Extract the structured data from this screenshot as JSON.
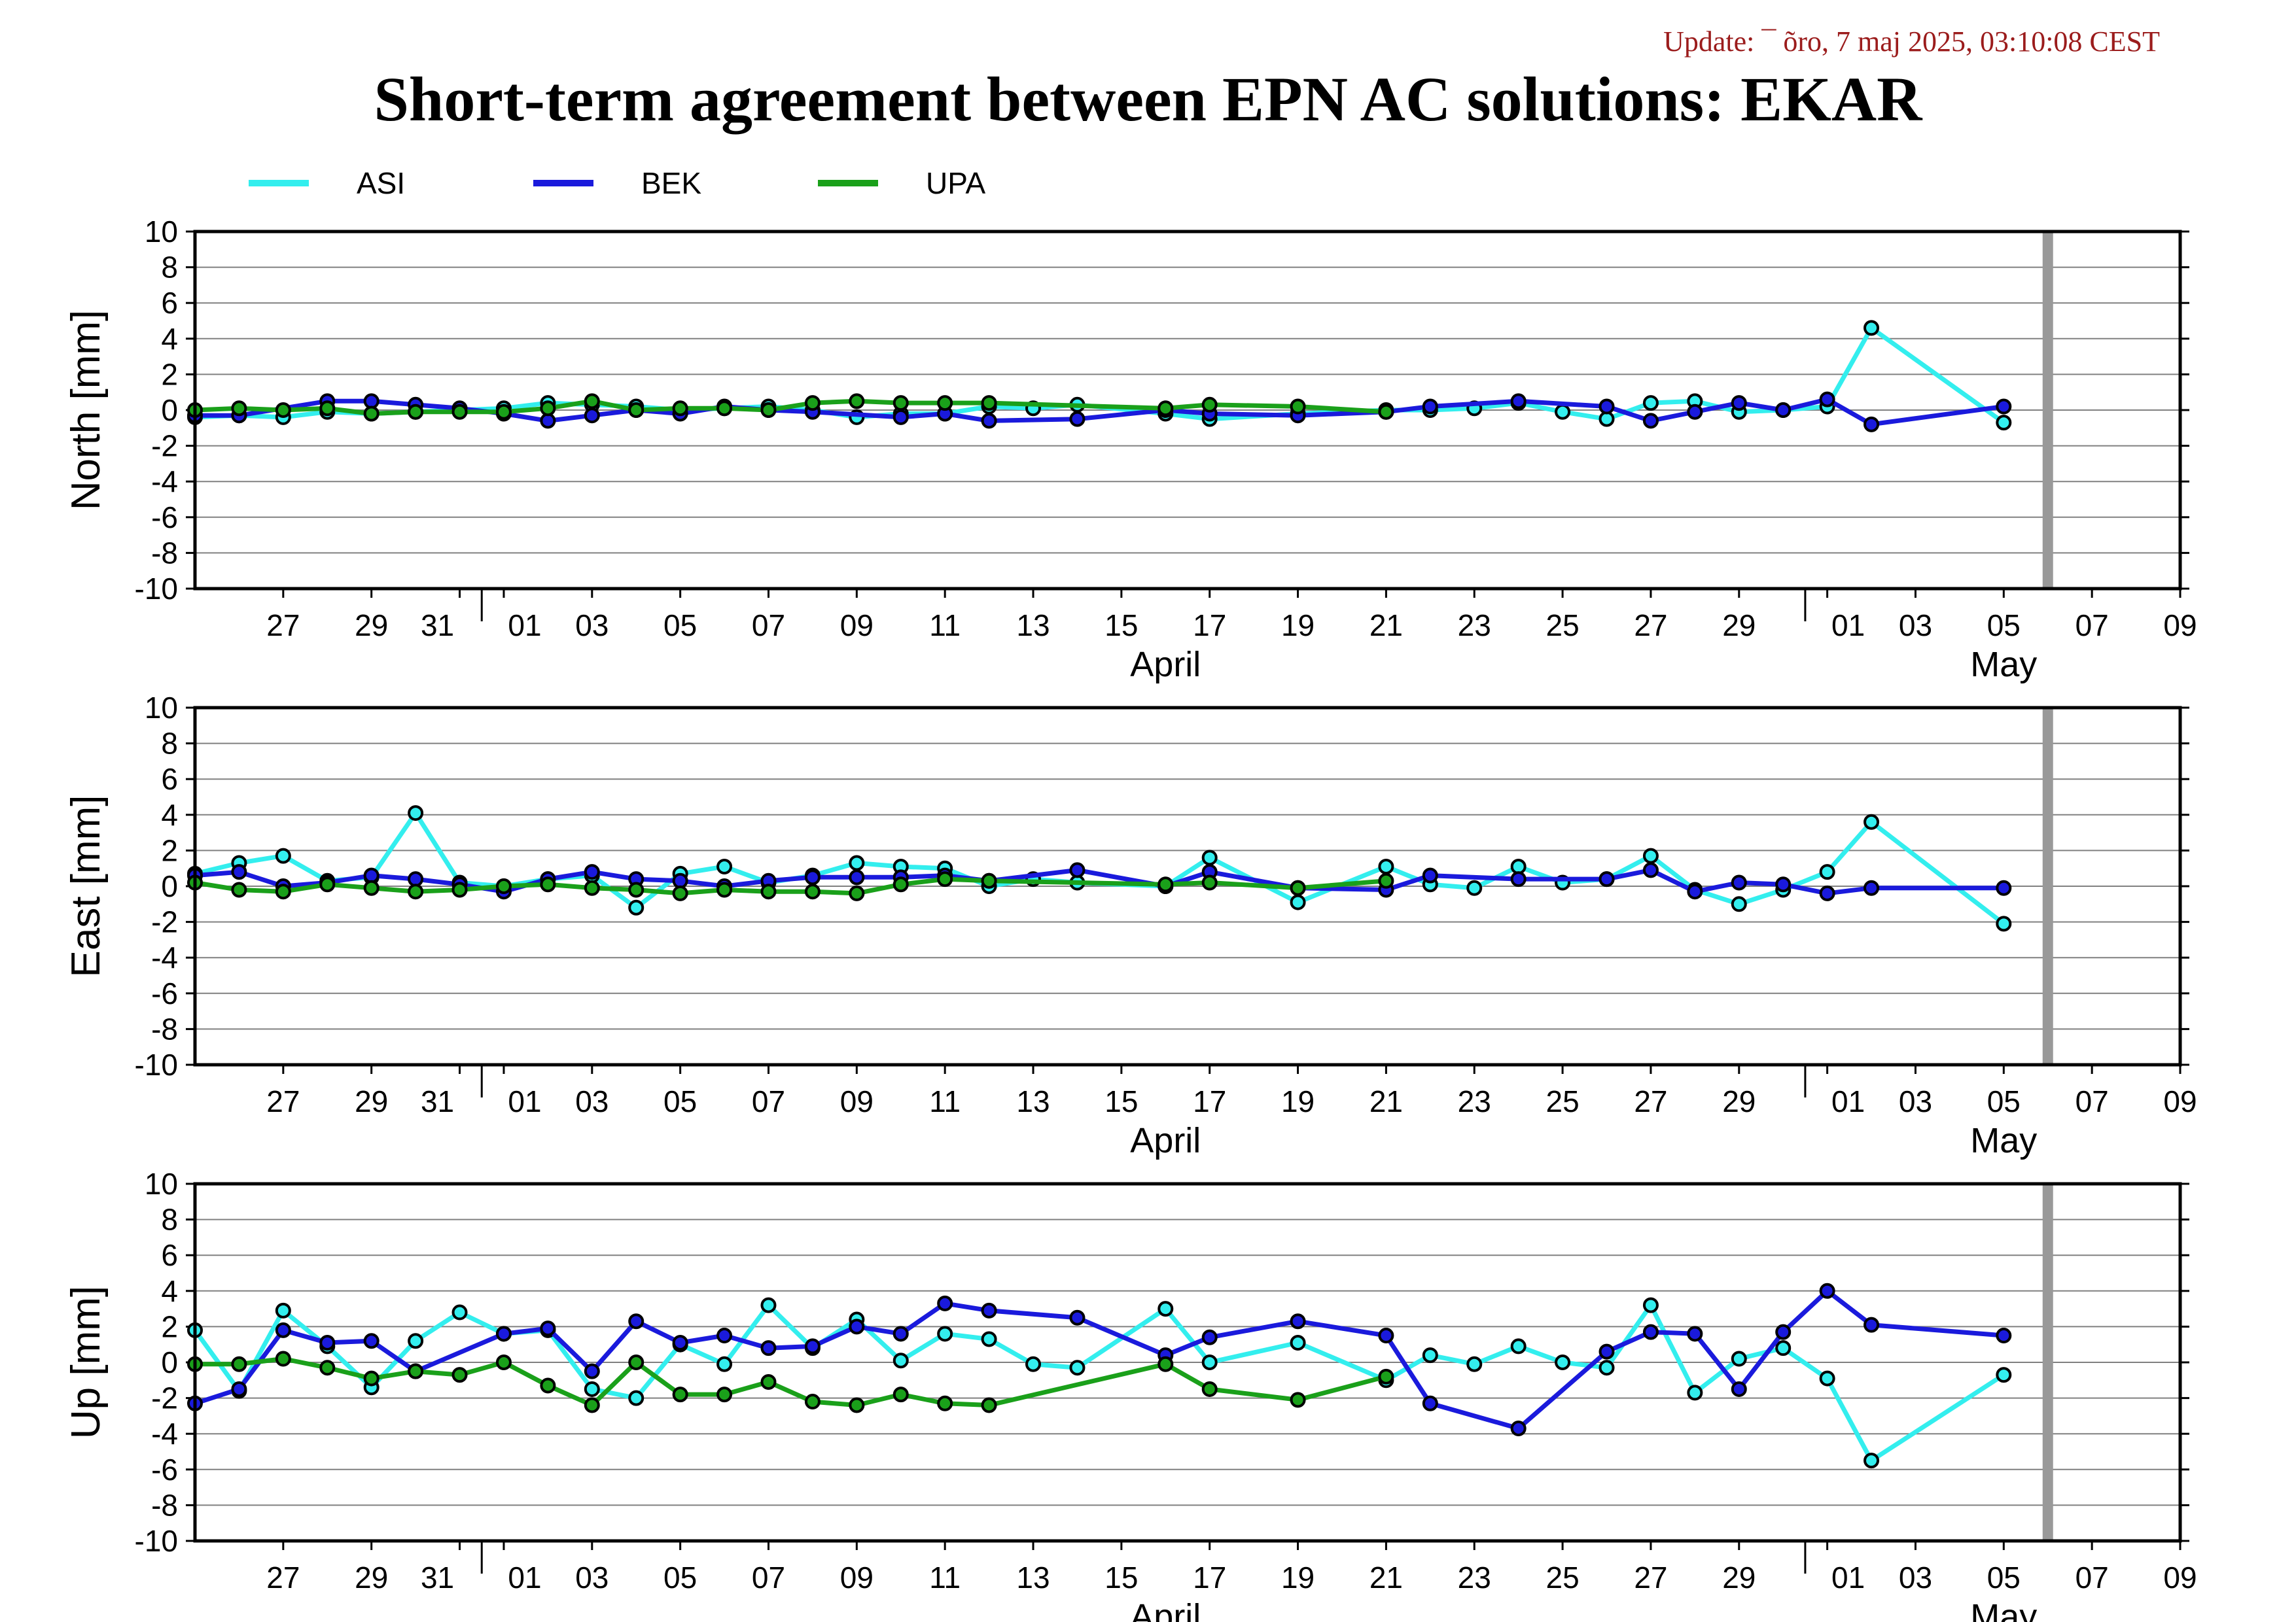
{
  "header": {
    "update_text": "Update: ¯ õro, 7 maj 2025, 03:10:08 CEST",
    "title": "Short-term agreement between EPN AC solutions: EKAR"
  },
  "colors": {
    "ASI": "#33eeee",
    "BEK": "#1a1adc",
    "UPA": "#1aa01a",
    "current_day_bar": "#999999",
    "grid": "#808080"
  },
  "chart_data": [
    {
      "type": "line",
      "ylabel": "North [mm]",
      "ylim": [
        -10,
        10
      ],
      "yticks": [
        10,
        8,
        6,
        4,
        2,
        0,
        -2,
        -4,
        -6,
        -8,
        -10
      ],
      "xlim": [
        "2025-03-25",
        "2025-05-09"
      ],
      "x_tick_labels": [
        "27",
        "29",
        "31",
        "01",
        "03",
        "05",
        "07",
        "09",
        "11",
        "13",
        "15",
        "17",
        "19",
        "21",
        "23",
        "25",
        "27",
        "29",
        "01",
        "03",
        "05",
        "07",
        "09"
      ],
      "month_labels": [
        "April",
        "May"
      ],
      "current_day": "2025-05-06",
      "grid": "horizontal",
      "legend": "top",
      "series": [
        {
          "name": "ASI",
          "x": [
            "2025-03-25",
            "2025-03-26",
            "2025-03-27",
            "2025-03-28",
            "2025-03-29",
            "2025-03-30",
            "2025-03-31",
            "2025-04-01",
            "2025-04-02",
            "2025-04-03",
            "2025-04-04",
            "2025-04-05",
            "2025-04-06",
            "2025-04-07",
            "2025-04-08",
            "2025-04-09",
            "2025-04-10",
            "2025-04-11",
            "2025-04-12",
            "2025-04-13",
            "2025-04-14",
            "2025-04-16",
            "2025-04-17",
            "2025-04-19",
            "2025-04-21",
            "2025-04-22",
            "2025-04-23",
            "2025-04-24",
            "2025-04-25",
            "2025-04-26",
            "2025-04-27",
            "2025-04-28",
            "2025-04-29",
            "2025-04-30",
            "2025-05-01",
            "2025-05-02",
            "2025-05-05"
          ],
          "y": [
            -0.4,
            -0.3,
            -0.4,
            -0.1,
            -0.2,
            -0.1,
            0.0,
            0.1,
            0.4,
            0.3,
            0.2,
            0.0,
            0.1,
            0.2,
            0.0,
            -0.4,
            -0.2,
            -0.2,
            0.2,
            0.1,
            0.3,
            -0.2,
            -0.5,
            -0.2,
            0.0,
            0.0,
            0.1,
            0.4,
            -0.1,
            -0.5,
            0.4,
            0.5,
            -0.1,
            0.0,
            0.2,
            4.6,
            -0.7
          ]
        },
        {
          "name": "BEK",
          "x": [
            "2025-03-25",
            "2025-03-26",
            "2025-03-28",
            "2025-03-29",
            "2025-03-30",
            "2025-03-31",
            "2025-04-01",
            "2025-04-02",
            "2025-04-03",
            "2025-04-04",
            "2025-04-05",
            "2025-04-06",
            "2025-04-07",
            "2025-04-08",
            "2025-04-10",
            "2025-04-11",
            "2025-04-12",
            "2025-04-14",
            "2025-04-16",
            "2025-04-17",
            "2025-04-19",
            "2025-04-21",
            "2025-04-22",
            "2025-04-24",
            "2025-04-26",
            "2025-04-27",
            "2025-04-28",
            "2025-04-29",
            "2025-04-30",
            "2025-05-01",
            "2025-05-02",
            "2025-05-05"
          ],
          "y": [
            -0.3,
            -0.3,
            0.5,
            0.5,
            0.3,
            0.1,
            -0.2,
            -0.6,
            -0.3,
            0.0,
            -0.2,
            0.2,
            0.0,
            -0.1,
            -0.4,
            -0.2,
            -0.6,
            -0.5,
            0.0,
            -0.2,
            -0.3,
            -0.1,
            0.2,
            0.5,
            0.2,
            -0.6,
            -0.1,
            0.4,
            0.0,
            0.6,
            -0.8,
            0.2
          ]
        },
        {
          "name": "UPA",
          "x": [
            "2025-03-25",
            "2025-03-26",
            "2025-03-27",
            "2025-03-28",
            "2025-03-29",
            "2025-03-30",
            "2025-03-31",
            "2025-04-01",
            "2025-04-02",
            "2025-04-03",
            "2025-04-04",
            "2025-04-05",
            "2025-04-06",
            "2025-04-07",
            "2025-04-08",
            "2025-04-09",
            "2025-04-10",
            "2025-04-11",
            "2025-04-12",
            "2025-04-16",
            "2025-04-17",
            "2025-04-19",
            "2025-04-21"
          ],
          "y": [
            0.0,
            0.1,
            0.0,
            0.1,
            -0.2,
            -0.1,
            -0.1,
            -0.1,
            0.1,
            0.5,
            0.0,
            0.1,
            0.1,
            0.0,
            0.4,
            0.5,
            0.4,
            0.4,
            0.4,
            0.1,
            0.3,
            0.2,
            -0.1
          ]
        }
      ]
    },
    {
      "type": "line",
      "ylabel": "East [mm]",
      "ylim": [
        -10,
        10
      ],
      "yticks": [
        10,
        8,
        6,
        4,
        2,
        0,
        -2,
        -4,
        -6,
        -8,
        -10
      ],
      "xlim": [
        "2025-03-25",
        "2025-05-09"
      ],
      "x_tick_labels": [
        "27",
        "29",
        "31",
        "01",
        "03",
        "05",
        "07",
        "09",
        "11",
        "13",
        "15",
        "17",
        "19",
        "21",
        "23",
        "25",
        "27",
        "29",
        "01",
        "03",
        "05",
        "07",
        "09"
      ],
      "month_labels": [
        "April",
        "May"
      ],
      "current_day": "2025-05-06",
      "grid": "horizontal",
      "series": [
        {
          "name": "ASI",
          "x": [
            "2025-03-25",
            "2025-03-26",
            "2025-03-27",
            "2025-03-28",
            "2025-03-29",
            "2025-03-30",
            "2025-03-31",
            "2025-04-01",
            "2025-04-02",
            "2025-04-03",
            "2025-04-04",
            "2025-04-05",
            "2025-04-06",
            "2025-04-07",
            "2025-04-08",
            "2025-04-09",
            "2025-04-10",
            "2025-04-11",
            "2025-04-12",
            "2025-04-13",
            "2025-04-14",
            "2025-04-16",
            "2025-04-17",
            "2025-04-19",
            "2025-04-21",
            "2025-04-22",
            "2025-04-23",
            "2025-04-24",
            "2025-04-25",
            "2025-04-26",
            "2025-04-27",
            "2025-04-28",
            "2025-04-29",
            "2025-04-30",
            "2025-05-01",
            "2025-05-02",
            "2025-05-05"
          ],
          "y": [
            0.7,
            1.3,
            1.7,
            0.3,
            0.5,
            4.1,
            0.2,
            0.0,
            0.4,
            0.6,
            -1.2,
            0.7,
            1.1,
            0.2,
            0.6,
            1.3,
            1.1,
            1.0,
            0.0,
            0.4,
            0.2,
            0.0,
            1.6,
            -0.9,
            1.1,
            0.1,
            -0.1,
            1.1,
            0.2,
            0.4,
            1.7,
            -0.2,
            -1.0,
            -0.2,
            0.8,
            3.6,
            -2.1
          ]
        },
        {
          "name": "BEK",
          "x": [
            "2025-03-25",
            "2025-03-26",
            "2025-03-27",
            "2025-03-28",
            "2025-03-29",
            "2025-03-30",
            "2025-03-31",
            "2025-04-01",
            "2025-04-02",
            "2025-04-03",
            "2025-04-04",
            "2025-04-05",
            "2025-04-06",
            "2025-04-07",
            "2025-04-08",
            "2025-04-09",
            "2025-04-10",
            "2025-04-11",
            "2025-04-12",
            "2025-04-14",
            "2025-04-16",
            "2025-04-17",
            "2025-04-19",
            "2025-04-21",
            "2025-04-22",
            "2025-04-24",
            "2025-04-26",
            "2025-04-27",
            "2025-04-28",
            "2025-04-29",
            "2025-04-30",
            "2025-05-01",
            "2025-05-02",
            "2025-05-05"
          ],
          "y": [
            0.6,
            0.8,
            0.0,
            0.2,
            0.6,
            0.4,
            0.1,
            -0.3,
            0.4,
            0.8,
            0.4,
            0.3,
            0.0,
            0.3,
            0.5,
            0.5,
            0.5,
            0.6,
            0.3,
            0.9,
            0.0,
            0.8,
            -0.1,
            -0.2,
            0.6,
            0.4,
            0.4,
            0.9,
            -0.3,
            0.2,
            0.1,
            -0.4,
            -0.1,
            -0.1
          ]
        },
        {
          "name": "UPA",
          "x": [
            "2025-03-25",
            "2025-03-26",
            "2025-03-27",
            "2025-03-28",
            "2025-03-29",
            "2025-03-30",
            "2025-03-31",
            "2025-04-01",
            "2025-04-02",
            "2025-04-03",
            "2025-04-04",
            "2025-04-05",
            "2025-04-06",
            "2025-04-07",
            "2025-04-08",
            "2025-04-09",
            "2025-04-10",
            "2025-04-11",
            "2025-04-12",
            "2025-04-16",
            "2025-04-17",
            "2025-04-19",
            "2025-04-21"
          ],
          "y": [
            0.2,
            -0.2,
            -0.3,
            0.1,
            -0.1,
            -0.3,
            -0.2,
            0.0,
            0.1,
            -0.1,
            -0.2,
            -0.4,
            -0.2,
            -0.3,
            -0.3,
            -0.4,
            0.1,
            0.4,
            0.3,
            0.1,
            0.2,
            -0.1,
            0.3
          ]
        }
      ]
    },
    {
      "type": "line",
      "ylabel": "Up [mm]",
      "ylim": [
        -10,
        10
      ],
      "yticks": [
        10,
        8,
        6,
        4,
        2,
        0,
        -2,
        -4,
        -6,
        -8,
        -10
      ],
      "xlim": [
        "2025-03-25",
        "2025-05-09"
      ],
      "x_tick_labels": [
        "27",
        "29",
        "31",
        "01",
        "03",
        "05",
        "07",
        "09",
        "11",
        "13",
        "15",
        "17",
        "19",
        "21",
        "23",
        "25",
        "27",
        "29",
        "01",
        "03",
        "05",
        "07",
        "09"
      ],
      "month_labels": [
        "April",
        "May"
      ],
      "current_day": "2025-05-06",
      "grid": "horizontal",
      "series": [
        {
          "name": "ASI",
          "x": [
            "2025-03-25",
            "2025-03-26",
            "2025-03-27",
            "2025-03-28",
            "2025-03-29",
            "2025-03-30",
            "2025-03-31",
            "2025-04-01",
            "2025-04-02",
            "2025-04-03",
            "2025-04-04",
            "2025-04-05",
            "2025-04-06",
            "2025-04-07",
            "2025-04-08",
            "2025-04-09",
            "2025-04-10",
            "2025-04-11",
            "2025-04-12",
            "2025-04-13",
            "2025-04-14",
            "2025-04-16",
            "2025-04-17",
            "2025-04-19",
            "2025-04-21",
            "2025-04-22",
            "2025-04-23",
            "2025-04-24",
            "2025-04-25",
            "2025-04-26",
            "2025-04-27",
            "2025-04-28",
            "2025-04-29",
            "2025-04-30",
            "2025-05-01",
            "2025-05-02",
            "2025-05-05"
          ],
          "y": [
            1.8,
            -1.6,
            2.9,
            0.9,
            -1.4,
            1.2,
            2.8,
            1.6,
            1.8,
            -1.5,
            -2.0,
            1.0,
            -0.1,
            3.2,
            0.8,
            2.4,
            0.1,
            1.6,
            1.3,
            -0.1,
            -0.3,
            3.0,
            0.0,
            1.1,
            -1.0,
            0.4,
            -0.1,
            0.9,
            0.0,
            -0.3,
            3.2,
            -1.7,
            0.2,
            0.8,
            -0.9,
            -5.5,
            -0.7
          ]
        },
        {
          "name": "BEK",
          "x": [
            "2025-03-25",
            "2025-03-26",
            "2025-03-27",
            "2025-03-28",
            "2025-03-29",
            "2025-03-30",
            "2025-04-01",
            "2025-04-02",
            "2025-04-03",
            "2025-04-04",
            "2025-04-05",
            "2025-04-06",
            "2025-04-07",
            "2025-04-08",
            "2025-04-09",
            "2025-04-10",
            "2025-04-11",
            "2025-04-12",
            "2025-04-14",
            "2025-04-16",
            "2025-04-17",
            "2025-04-19",
            "2025-04-21",
            "2025-04-22",
            "2025-04-24",
            "2025-04-26",
            "2025-04-27",
            "2025-04-28",
            "2025-04-29",
            "2025-04-30",
            "2025-05-01",
            "2025-05-02",
            "2025-05-05"
          ],
          "y": [
            -2.3,
            -1.5,
            1.8,
            1.1,
            1.2,
            -0.5,
            1.6,
            1.9,
            -0.5,
            2.3,
            1.1,
            1.5,
            0.8,
            0.9,
            2.0,
            1.6,
            3.3,
            2.9,
            2.5,
            0.4,
            1.4,
            2.3,
            1.5,
            -2.3,
            -3.7,
            0.6,
            1.7,
            1.6,
            -1.5,
            1.7,
            4.0,
            2.1,
            1.5
          ]
        },
        {
          "name": "UPA",
          "x": [
            "2025-03-25",
            "2025-03-26",
            "2025-03-27",
            "2025-03-28",
            "2025-03-29",
            "2025-03-30",
            "2025-03-31",
            "2025-04-01",
            "2025-04-02",
            "2025-04-03",
            "2025-04-04",
            "2025-04-05",
            "2025-04-06",
            "2025-04-07",
            "2025-04-08",
            "2025-04-09",
            "2025-04-10",
            "2025-04-11",
            "2025-04-12",
            "2025-04-16",
            "2025-04-17",
            "2025-04-19",
            "2025-04-21"
          ],
          "y": [
            -0.1,
            -0.1,
            0.2,
            -0.3,
            -0.9,
            -0.5,
            -0.7,
            0.0,
            -1.3,
            -2.4,
            0.0,
            -1.8,
            -1.8,
            -1.1,
            -2.2,
            -2.4,
            -1.8,
            -2.3,
            -2.4,
            -0.1,
            -1.5,
            -2.1,
            -0.8
          ]
        }
      ]
    }
  ]
}
